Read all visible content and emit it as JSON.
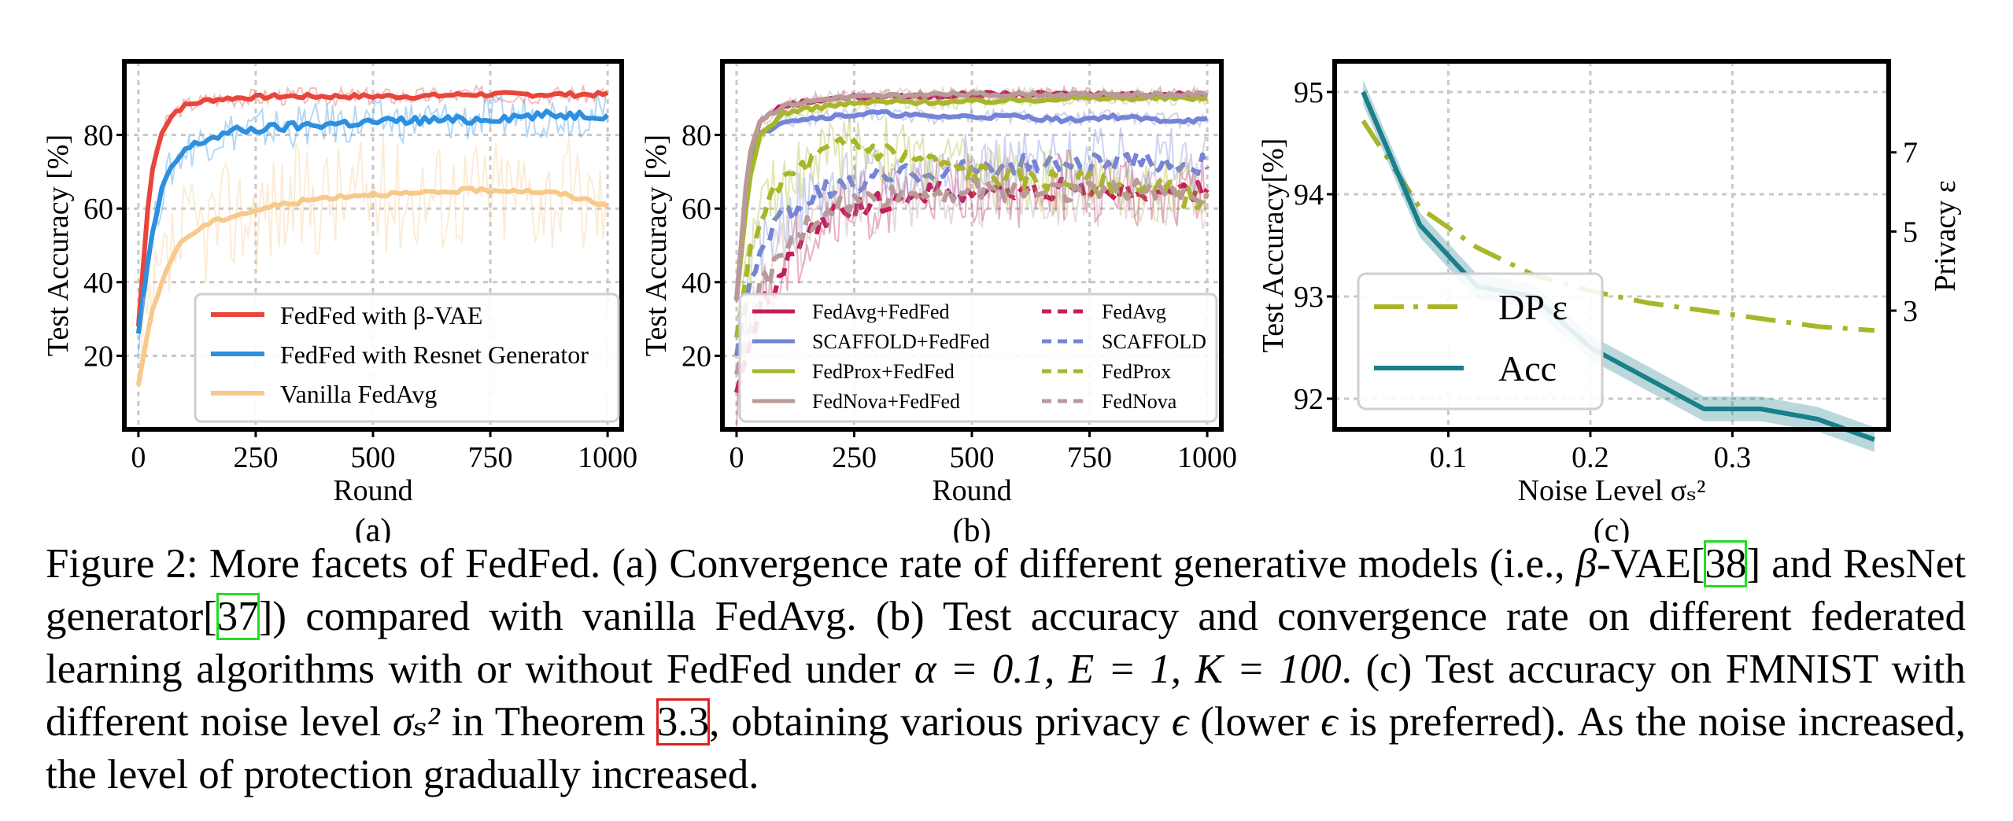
{
  "chart_data": [
    {
      "type": "line",
      "panel_label": "(a)",
      "xlabel": "Round",
      "ylabel": "Test Accuracy [%]",
      "xlim": [
        -30,
        1030
      ],
      "ylim": [
        0,
        100
      ],
      "xticks": [
        0,
        250,
        500,
        750,
        1000
      ],
      "yticks": [
        20,
        40,
        60,
        80
      ],
      "grid": true,
      "legend_position": "lower-right",
      "series": [
        {
          "name": "FedFed with β-VAE",
          "color": "#e8453c",
          "x": [
            0,
            25,
            50,
            75,
            100,
            150,
            200,
            300,
            400,
            500,
            600,
            700,
            800,
            900,
            1000
          ],
          "y": [
            28,
            68,
            81,
            86,
            88,
            89.5,
            90,
            90.5,
            90.5,
            90.5,
            90.5,
            91,
            91,
            91,
            91
          ]
        },
        {
          "name": "FedFed with Resnet Generator",
          "color": "#2c8fe0",
          "x": [
            0,
            25,
            50,
            75,
            100,
            150,
            200,
            300,
            400,
            500,
            600,
            700,
            800,
            900,
            1000
          ],
          "y": [
            26,
            50,
            65,
            72,
            76,
            79,
            81,
            82,
            83,
            83.5,
            84,
            84,
            85,
            85.5,
            85.5
          ]
        },
        {
          "name": "Vanilla FedAvg",
          "color": "#f7c98a",
          "x": [
            0,
            25,
            50,
            75,
            100,
            150,
            200,
            300,
            400,
            500,
            600,
            700,
            800,
            900,
            1000
          ],
          "y": [
            12,
            30,
            40,
            48,
            52,
            56,
            58,
            61,
            63,
            64,
            64,
            65,
            65,
            64,
            61
          ]
        }
      ]
    },
    {
      "type": "line",
      "panel_label": "(b)",
      "xlabel": "Round",
      "ylabel": "Test Accuracy [%]",
      "xlim": [
        -30,
        1030
      ],
      "ylim": [
        0,
        100
      ],
      "xticks": [
        0,
        250,
        500,
        750,
        1000
      ],
      "yticks": [
        20,
        40,
        60,
        80
      ],
      "grid": true,
      "legend_position": "lower",
      "series": [
        {
          "name": "FedAvg+FedFed",
          "color": "#c41e5a",
          "dash": false,
          "x": [
            0,
            25,
            50,
            100,
            200,
            300,
            400,
            500,
            600,
            700,
            800,
            900,
            1000
          ],
          "y": [
            35,
            72,
            84,
            88,
            90,
            90.5,
            90.5,
            91,
            91,
            91,
            91,
            91,
            91
          ]
        },
        {
          "name": "SCAFFOLD+FedFed",
          "color": "#7484d6",
          "dash": false,
          "x": [
            0,
            25,
            50,
            100,
            200,
            300,
            400,
            500,
            600,
            700,
            800,
            900,
            1000
          ],
          "y": [
            35,
            70,
            80,
            84,
            85,
            86,
            85,
            85,
            85,
            84,
            85,
            84,
            84
          ]
        },
        {
          "name": "FedProx+FedFed",
          "color": "#a8b62a",
          "dash": false,
          "x": [
            0,
            25,
            50,
            100,
            200,
            300,
            400,
            500,
            600,
            700,
            800,
            900,
            1000
          ],
          "y": [
            35,
            66,
            80,
            86,
            88,
            89,
            89,
            89,
            89.5,
            90,
            90,
            90,
            90
          ]
        },
        {
          "name": "FedNova+FedFed",
          "color": "#b89a98",
          "dash": false,
          "x": [
            0,
            25,
            50,
            100,
            200,
            300,
            400,
            500,
            600,
            700,
            800,
            900,
            1000
          ],
          "y": [
            35,
            74,
            84,
            88,
            90,
            90.5,
            91,
            91,
            91,
            91,
            91,
            91,
            91
          ]
        },
        {
          "name": "FedAvg",
          "color": "#c41e5a",
          "dash": true,
          "x": [
            0,
            25,
            50,
            100,
            150,
            200,
            300,
            400,
            500,
            600,
            700,
            800,
            900,
            1000
          ],
          "y": [
            10,
            22,
            32,
            44,
            52,
            58,
            62,
            64,
            65,
            64,
            66,
            64,
            65,
            64
          ]
        },
        {
          "name": "SCAFFOLD",
          "color": "#7484d6",
          "dash": true,
          "x": [
            0,
            25,
            50,
            100,
            150,
            200,
            300,
            400,
            500,
            600,
            700,
            800,
            900,
            1000
          ],
          "y": [
            20,
            38,
            48,
            58,
            62,
            65,
            68,
            70,
            71,
            72,
            72,
            72,
            73,
            72
          ]
        },
        {
          "name": "FedProx",
          "color": "#a8b62a",
          "dash": true,
          "x": [
            0,
            25,
            50,
            100,
            150,
            200,
            250,
            300,
            400,
            500,
            600,
            700,
            800,
            900,
            1000
          ],
          "y": [
            25,
            45,
            58,
            68,
            72,
            76,
            78,
            76,
            73,
            70,
            68,
            68,
            66,
            65,
            62
          ]
        },
        {
          "name": "FedNova",
          "color": "#b89a98",
          "dash": true,
          "x": [
            0,
            25,
            50,
            100,
            150,
            200,
            300,
            400,
            500,
            600,
            700,
            800,
            900,
            1000
          ],
          "y": [
            15,
            28,
            38,
            48,
            55,
            60,
            63,
            64,
            65,
            65,
            65,
            65,
            65,
            64
          ]
        }
      ]
    },
    {
      "type": "line",
      "panel_label": "(c)",
      "xlabel": "Noise Level σₛ²",
      "ylabel": "Test Accuracy[%]",
      "ylabel_right": "Privacy ε",
      "xlim": [
        0.02,
        0.41
      ],
      "ylim": [
        91.7,
        95.3
      ],
      "ylim_right": [
        0,
        9.3
      ],
      "xticks": [
        0.1,
        0.2,
        0.3
      ],
      "yticks": [
        92,
        93,
        94,
        95
      ],
      "yticks_right": [
        3,
        5,
        7
      ],
      "grid": true,
      "legend_position": "center-left",
      "series": [
        {
          "name": "DP ε",
          "color": "#a8b62a",
          "axis": "right",
          "dash": true,
          "x": [
            0.04,
            0.08,
            0.12,
            0.16,
            0.2,
            0.24,
            0.28,
            0.32,
            0.36,
            0.4
          ],
          "y": [
            7.8,
            5.6,
            4.6,
            3.9,
            3.5,
            3.2,
            3.0,
            2.8,
            2.6,
            2.5
          ]
        },
        {
          "name": "Acc",
          "color": "#1a7f8a",
          "axis": "left",
          "dash": false,
          "x": [
            0.04,
            0.08,
            0.12,
            0.16,
            0.2,
            0.24,
            0.28,
            0.32,
            0.36,
            0.4
          ],
          "y": [
            95.0,
            93.7,
            93.1,
            93.0,
            92.5,
            92.2,
            91.9,
            91.9,
            91.8,
            91.6
          ]
        }
      ]
    }
  ],
  "caption": {
    "intro": "Figure 2: More facets of FedFed. (a) Convergence rate of different generative models (i.e., ",
    "beta": "β",
    "vae": "-VAE[",
    "ref38": "38",
    "mid1": "] and ResNet generator[",
    "ref37": "37",
    "mid2": "]) compared with vanilla FedAvg. (b) Test accuracy and convergence rate on different federated learning algorithms with or without FedFed under ",
    "params": "α = 0.1, E = 1, K = 100",
    "mid3": ". (c) Test accuracy on FMNIST with different noise level ",
    "sigma": "σₛ²",
    "mid4": " in Theorem ",
    "ref33": "3.3",
    "mid5": ", obtaining various privacy ",
    "eps": "ϵ",
    "mid6": " (lower ",
    "eps2": "ϵ",
    "end": " is preferred). As the noise increased, the level of protection gradually increased."
  }
}
